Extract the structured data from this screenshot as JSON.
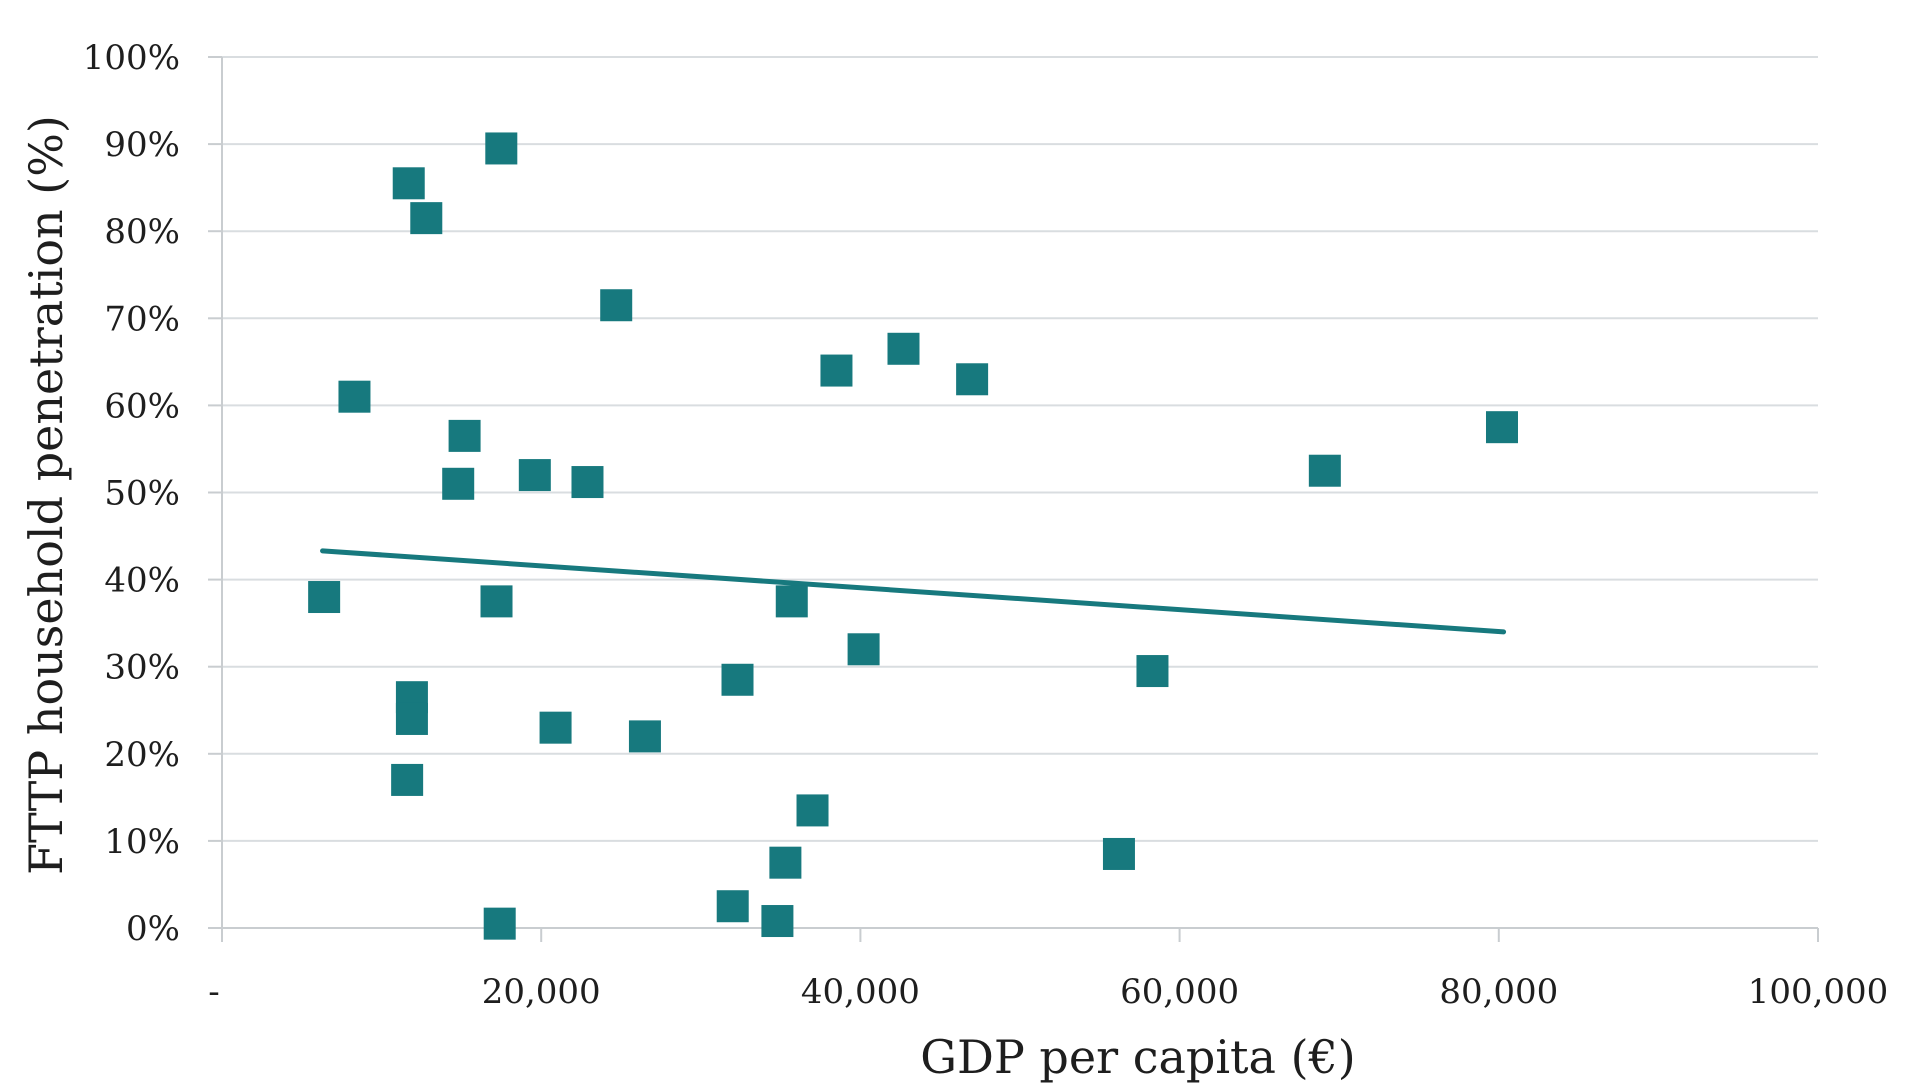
{
  "chart_data": {
    "type": "scatter",
    "title": "",
    "xlabel": "GDP per capita (€)",
    "ylabel": "FTTP household penetration (%)",
    "xlim": [
      0,
      100000
    ],
    "ylim": [
      0,
      100
    ],
    "x_ticks": [
      0,
      20000,
      40000,
      60000,
      80000,
      100000
    ],
    "x_tick_labels": [
      "-",
      "20,000",
      "40,000",
      "60,000",
      "80,000",
      "100,000"
    ],
    "y_ticks": [
      0,
      10,
      20,
      30,
      40,
      50,
      60,
      70,
      80,
      90,
      100
    ],
    "y_tick_labels": [
      "0%",
      "10%",
      "20%",
      "30%",
      "40%",
      "50%",
      "60%",
      "70%",
      "80%",
      "90%",
      "100%"
    ],
    "grid": true,
    "legend": "none",
    "marker": "square",
    "color": "#17797e",
    "points": [
      {
        "x": 17500,
        "y": 89.5
      },
      {
        "x": 11700,
        "y": 85.5
      },
      {
        "x": 12800,
        "y": 81.5
      },
      {
        "x": 24700,
        "y": 71.5
      },
      {
        "x": 42700,
        "y": 66.5
      },
      {
        "x": 38500,
        "y": 64
      },
      {
        "x": 47000,
        "y": 63
      },
      {
        "x": 8300,
        "y": 61
      },
      {
        "x": 80200,
        "y": 57.5
      },
      {
        "x": 15200,
        "y": 56.5
      },
      {
        "x": 69100,
        "y": 52.5
      },
      {
        "x": 19600,
        "y": 52
      },
      {
        "x": 22900,
        "y": 51.2
      },
      {
        "x": 14800,
        "y": 51
      },
      {
        "x": 6400,
        "y": 38
      },
      {
        "x": 17200,
        "y": 37.5
      },
      {
        "x": 35700,
        "y": 37.5
      },
      {
        "x": 40200,
        "y": 32
      },
      {
        "x": 58300,
        "y": 29.5
      },
      {
        "x": 32300,
        "y": 28.5
      },
      {
        "x": 11900,
        "y": 26.5
      },
      {
        "x": 11900,
        "y": 24
      },
      {
        "x": 20900,
        "y": 23
      },
      {
        "x": 26500,
        "y": 22
      },
      {
        "x": 11600,
        "y": 17
      },
      {
        "x": 37000,
        "y": 13.5
      },
      {
        "x": 56200,
        "y": 8.5
      },
      {
        "x": 35300,
        "y": 7.5
      },
      {
        "x": 32000,
        "y": 2.5
      },
      {
        "x": 17400,
        "y": 0.5
      },
      {
        "x": 34800,
        "y": 0.8
      }
    ],
    "trendline": {
      "color": "#17797e",
      "points": [
        {
          "x": 6300,
          "y": 43.3
        },
        {
          "x": 80300,
          "y": 34
        }
      ]
    }
  }
}
